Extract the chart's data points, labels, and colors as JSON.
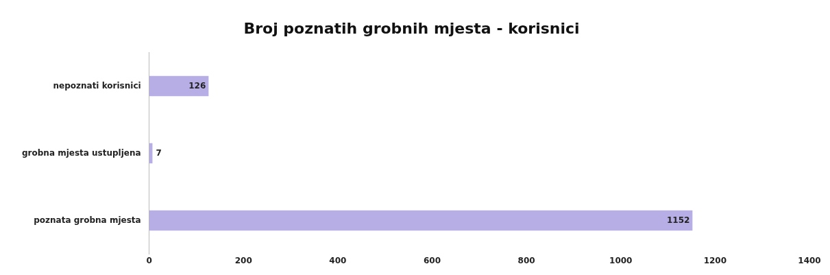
{
  "chart_data": {
    "type": "bar",
    "orientation": "horizontal",
    "title": "Broj poznatih grobnih mjesta - korisnici",
    "categories": [
      "nepoznati korisnici",
      "grobna mjesta ustupljena",
      "poznata grobna mjesta"
    ],
    "values": [
      126,
      7,
      1152
    ],
    "color": "#b8aee6",
    "xlim": [
      0,
      1400
    ],
    "xticks": [
      0,
      200,
      400,
      600,
      800,
      1000,
      1200,
      1400
    ],
    "data_labels": true,
    "legend": false,
    "grid": false
  }
}
